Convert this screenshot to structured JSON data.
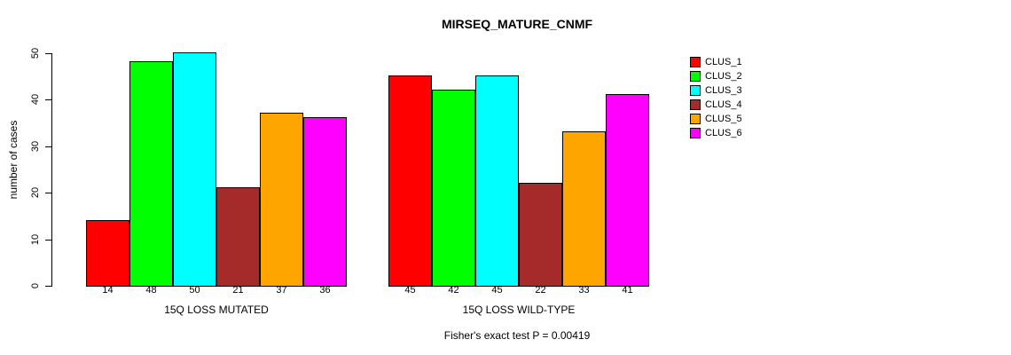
{
  "chart_data": {
    "type": "bar",
    "title": "MIRSEQ_MATURE_CNMF",
    "ylabel": "number of cases",
    "xlabel": "",
    "ylim": [
      0,
      50
    ],
    "yticks": [
      0,
      10,
      20,
      30,
      40,
      50
    ],
    "grid": false,
    "legend_position": "right",
    "categories": [
      "15Q LOSS MUTATED",
      "15Q LOSS WILD-TYPE"
    ],
    "series": [
      {
        "name": "CLUS_1",
        "color": "#FF0000",
        "values": [
          14,
          45
        ]
      },
      {
        "name": "CLUS_2",
        "color": "#00FF00",
        "values": [
          48,
          42
        ]
      },
      {
        "name": "CLUS_3",
        "color": "#00FFFF",
        "values": [
          50,
          45
        ]
      },
      {
        "name": "CLUS_4",
        "color": "#A52A2A",
        "values": [
          21,
          22
        ]
      },
      {
        "name": "CLUS_5",
        "color": "#FFA500",
        "values": [
          37,
          33
        ]
      },
      {
        "name": "CLUS_6",
        "color": "#FF00FF",
        "values": [
          36,
          41
        ]
      }
    ],
    "annotation": "Fisher's exact test P = 0.00419"
  }
}
